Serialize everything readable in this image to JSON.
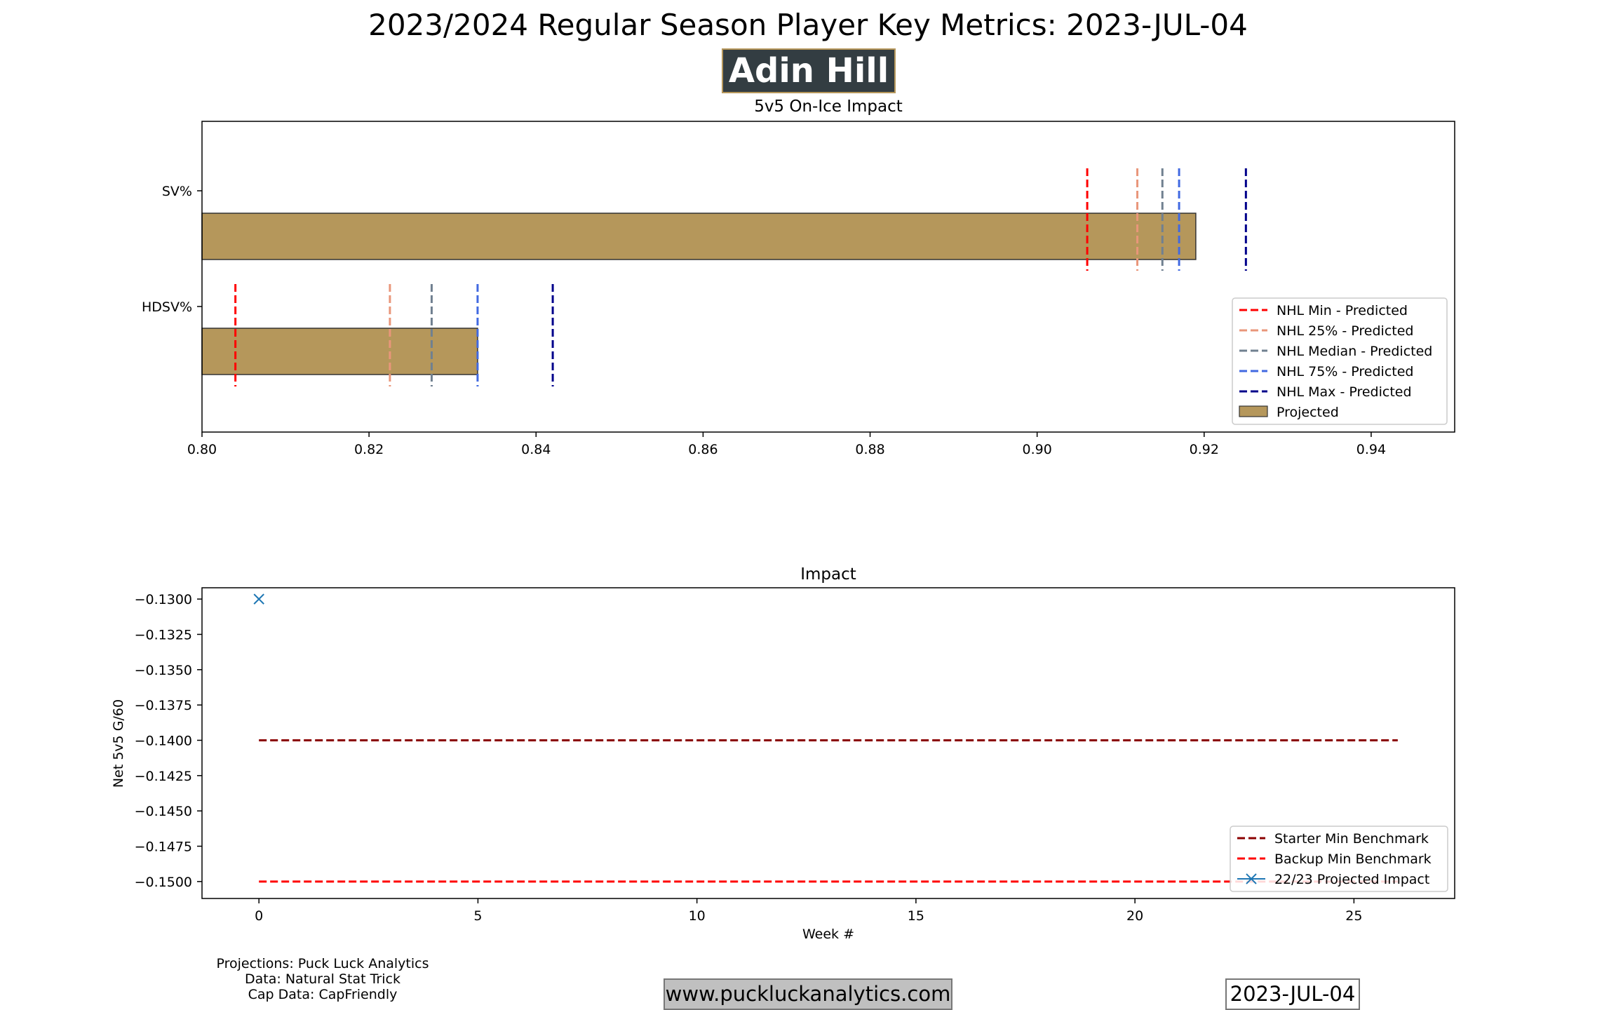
{
  "header": {
    "title": "2023/2024 Regular Season Player Key Metrics: 2023-JUL-04",
    "player_name": "Adin Hill"
  },
  "footer": {
    "credits": [
      "Projections: Puck Luck Analytics",
      "Data: Natural Stat Trick",
      "Cap Data: CapFriendly"
    ],
    "website": "www.puckluckanalytics.com",
    "date": "2023-JUL-04"
  },
  "colors": {
    "bar_fill": "#b5975b",
    "nhl_min": "#ff0000",
    "nhl_25": "#e9967a",
    "nhl_median": "#708090",
    "nhl_75": "#4169e1",
    "nhl_max": "#00008b",
    "starter_benchmark": "#8b0000",
    "backup_benchmark": "#ff0000",
    "projected_impact": "#1f77b4"
  },
  "chart_data": [
    {
      "type": "bar",
      "orientation": "horizontal",
      "title": "5v5 On-Ice Impact",
      "categories": [
        "SV%",
        "HDSV%"
      ],
      "xlim": [
        0.8,
        0.95
      ],
      "xticks": [
        0.8,
        0.82,
        0.84,
        0.86,
        0.88,
        0.9,
        0.92,
        0.94
      ],
      "xtick_labels": [
        "0.80",
        "0.82",
        "0.84",
        "0.86",
        "0.88",
        "0.90",
        "0.92",
        "0.94"
      ],
      "series": [
        {
          "name": "Projected",
          "values": [
            0.919,
            0.833
          ]
        }
      ],
      "reference_lines": [
        {
          "name": "NHL Min - Predicted",
          "values": [
            0.906,
            0.804
          ]
        },
        {
          "name": "NHL 25% - Predicted",
          "values": [
            0.912,
            0.8225
          ]
        },
        {
          "name": "NHL Median - Predicted",
          "values": [
            0.915,
            0.8275
          ]
        },
        {
          "name": "NHL 75% - Predicted",
          "values": [
            0.917,
            0.833
          ]
        },
        {
          "name": "NHL Max - Predicted",
          "values": [
            0.925,
            0.842
          ]
        }
      ],
      "legend_position": "lower-right"
    },
    {
      "type": "line",
      "title": "Impact",
      "xlabel": "Week #",
      "ylabel": "Net 5v5 G/60",
      "xlim": [
        -1.3,
        27.3
      ],
      "ylim": [
        -0.1512,
        -0.1292
      ],
      "xticks": [
        0,
        5,
        10,
        15,
        20,
        25
      ],
      "yticks": [
        -0.13,
        -0.1325,
        -0.135,
        -0.1375,
        -0.14,
        -0.1425,
        -0.145,
        -0.1475,
        -0.15
      ],
      "ytick_labels": [
        "−0.1300",
        "−0.1325",
        "−0.1350",
        "−0.1375",
        "−0.1400",
        "−0.1425",
        "−0.1450",
        "−0.1475",
        "−0.1500"
      ],
      "series": [
        {
          "name": "Starter Min Benchmark",
          "style": "dashed",
          "x": [
            0,
            26
          ],
          "y": [
            -0.14,
            -0.14
          ]
        },
        {
          "name": "Backup Min Benchmark",
          "style": "dashed",
          "x": [
            0,
            26
          ],
          "y": [
            -0.15,
            -0.15
          ]
        },
        {
          "name": "22/23 Projected Impact",
          "style": "marker-x",
          "x": [
            0
          ],
          "y": [
            -0.13
          ]
        }
      ],
      "legend_position": "lower-right"
    }
  ]
}
